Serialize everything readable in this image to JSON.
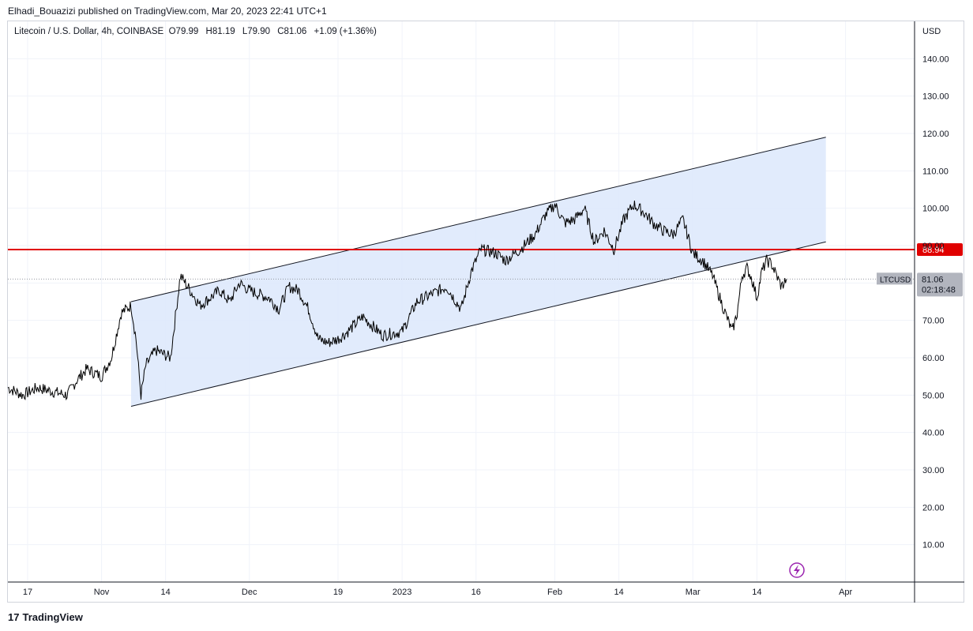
{
  "header": {
    "publish_text": "Elhadi_Bouazizi published on TradingView.com, Mar 20, 2023 22:41 UTC+1"
  },
  "legend": {
    "symbol_text": "Litecoin / U.S. Dollar, 4h, COINBASE",
    "o_label": "O",
    "o_value": "79.99",
    "h_label": "H",
    "h_value": "81.19",
    "l_label": "L",
    "l_value": "79.90",
    "c_label": "C",
    "c_value": "81.06",
    "change": "+1.09 (+1.36%)"
  },
  "price_axis": {
    "currency": "USD",
    "current_symbol": "LTCUSD",
    "current_price": "81.06",
    "countdown": "02:18:48",
    "level_label": "88.94"
  },
  "footer": {
    "brand": "TradingView",
    "logo_glyph": "17"
  },
  "colors": {
    "candles": "#000000",
    "channel_fill": "#dce8fb",
    "channel_line": "#131722",
    "horizontal_level": "#e00000",
    "grid": "#f0f3fa"
  },
  "chart_data": {
    "type": "line",
    "symbol": "LTCUSD",
    "timeframe": "4h",
    "ylim": [
      0,
      150
    ],
    "y_ticks": [
      10,
      20,
      30,
      40,
      50,
      60,
      70,
      80,
      90,
      100,
      110,
      120,
      130,
      140
    ],
    "x_ticks": [
      "17",
      "Nov",
      "14",
      "Dec",
      "19",
      "2023",
      "16",
      "Feb",
      "14",
      "Mar",
      "14",
      "Apr"
    ],
    "x_tick_dates": [
      "2022-10-17",
      "2022-11-01",
      "2022-11-14",
      "2022-12-01",
      "2022-12-19",
      "2023-01-01",
      "2023-01-16",
      "2023-02-01",
      "2023-02-14",
      "2023-03-01",
      "2023-03-14",
      "2023-04-01"
    ],
    "xlim": [
      "2022-10-13",
      "2023-04-15"
    ],
    "series": [
      {
        "x": [
          "2022-10-13",
          "2022-10-16",
          "2022-10-19",
          "2022-10-22",
          "2022-10-25",
          "2022-10-27",
          "2022-10-29",
          "2022-11-01",
          "2022-11-03",
          "2022-11-05",
          "2022-11-07",
          "2022-11-08",
          "2022-11-09",
          "2022-11-10",
          "2022-11-12",
          "2022-11-15",
          "2022-11-17",
          "2022-11-19",
          "2022-11-21",
          "2022-11-23",
          "2022-11-25",
          "2022-11-27",
          "2022-11-29",
          "2022-12-01",
          "2022-12-03",
          "2022-12-05",
          "2022-12-07",
          "2022-12-09",
          "2022-12-11",
          "2022-12-13",
          "2022-12-15",
          "2022-12-17",
          "2022-12-19",
          "2022-12-21",
          "2022-12-24",
          "2022-12-28",
          "2023-01-01",
          "2023-01-04",
          "2023-01-07",
          "2023-01-10",
          "2023-01-13",
          "2023-01-15",
          "2023-01-17",
          "2023-01-20",
          "2023-01-22",
          "2023-01-25",
          "2023-01-28",
          "2023-01-30",
          "2023-02-01",
          "2023-02-03",
          "2023-02-05",
          "2023-02-07",
          "2023-02-09",
          "2023-02-11",
          "2023-02-13",
          "2023-02-15",
          "2023-02-17",
          "2023-02-19",
          "2023-02-21",
          "2023-02-23",
          "2023-02-25",
          "2023-02-27",
          "2023-03-01",
          "2023-03-03",
          "2023-03-05",
          "2023-03-07",
          "2023-03-09",
          "2023-03-10",
          "2023-03-11",
          "2023-03-12",
          "2023-03-13",
          "2023-03-14",
          "2023-03-15",
          "2023-03-16",
          "2023-03-17",
          "2023-03-18",
          "2023-03-19",
          "2023-03-20"
        ],
        "values": [
          52,
          50,
          52,
          51,
          50,
          54,
          57,
          55,
          60,
          72,
          74,
          65,
          50,
          58,
          62,
          60,
          82,
          78,
          74,
          76,
          78,
          75,
          80,
          78,
          77,
          76,
          73,
          79,
          78,
          73,
          65,
          64,
          65,
          67,
          71,
          66,
          67,
          75,
          77,
          79,
          73,
          83,
          89,
          88,
          86,
          89,
          93,
          98,
          101,
          96,
          97,
          100,
          91,
          94,
          89,
          97,
          101,
          99,
          96,
          94,
          93,
          97,
          88,
          86,
          82,
          74,
          67,
          72,
          82,
          84,
          81,
          76,
          83,
          86,
          85,
          82,
          79,
          81.06
        ]
      }
    ],
    "current_price": 81.06,
    "annotations": [
      {
        "type": "horizontal_line",
        "value": 88.94,
        "label": "88.94"
      },
      {
        "type": "parallel_channel",
        "upper": [
          {
            "x": "2022-11-07",
            "y": 75
          },
          {
            "x": "2023-03-28",
            "y": 119
          }
        ],
        "lower": [
          {
            "x": "2022-11-07",
            "y": 47
          },
          {
            "x": "2023-03-28",
            "y": 91
          }
        ]
      }
    ],
    "grid": true,
    "title": "",
    "xlabel": "",
    "ylabel": ""
  }
}
